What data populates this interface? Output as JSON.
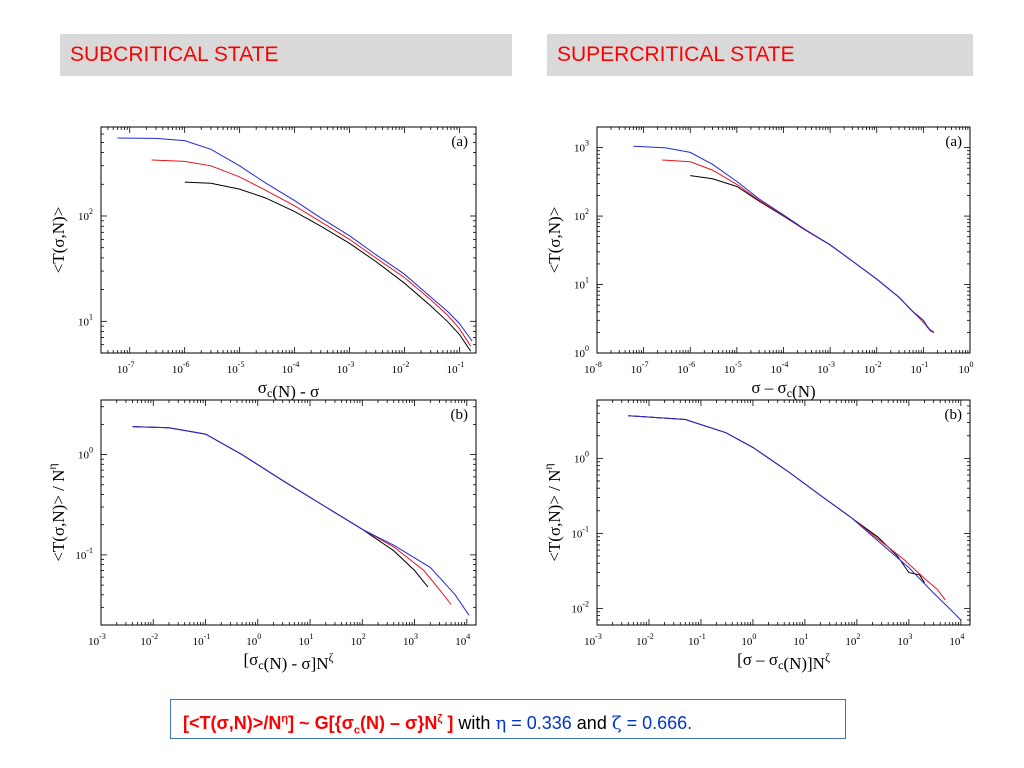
{
  "headers": {
    "left": "SUBCRITICAL  STATE",
    "right": "SUPERCRITICAL  STATE"
  },
  "formula": {
    "lhs": "[<T(σ,N)>/N",
    "lhs_sup": "η",
    "mid": "] ~ G[{σ",
    "mid_sub": "c",
    "rest": "(N) – σ}N",
    "rest_sup": "ζ",
    "close": " ]",
    "with": " with ",
    "eta_sym": "η",
    "eta_val": " = 0.336",
    "and": " and ",
    "zeta_sym": "ζ",
    "zeta_val": " = 0.666."
  },
  "colors": {
    "black": "#000000",
    "red": "#e8141c",
    "blue": "#1f2bd9",
    "header_bg": "#d9d9d9",
    "header_text": "#ff0000"
  },
  "chart_data": [
    {
      "id": "sub-a",
      "type": "line",
      "panel_label": "(a)",
      "xscale": "log",
      "yscale": "log",
      "xlim": [
        3e-08,
        0.2
      ],
      "ylim": [
        5,
        700
      ],
      "xticks": [
        "10^-7",
        "10^-6",
        "10^-5",
        "10^-4",
        "10^-3",
        "10^-2",
        "10^-1"
      ],
      "yticks": [
        "10^1",
        "10^2"
      ],
      "xlabel": "σc(N) - σ",
      "ylabel": "<T(σ,N)>",
      "series": [
        {
          "color": "black",
          "points": [
            [
              1e-06,
              210
            ],
            [
              3e-06,
              205
            ],
            [
              1e-05,
              180
            ],
            [
              3e-05,
              148
            ],
            [
              0.0001,
              110
            ],
            [
              0.0003,
              80
            ],
            [
              0.001,
              55
            ],
            [
              0.003,
              37
            ],
            [
              0.01,
              23
            ],
            [
              0.03,
              14
            ],
            [
              0.06,
              10
            ],
            [
              0.1,
              7.5
            ],
            [
              0.16,
              5.2
            ]
          ]
        },
        {
          "color": "red",
          "points": [
            [
              2.5e-07,
              340
            ],
            [
              1e-06,
              330
            ],
            [
              3e-06,
              300
            ],
            [
              1e-05,
              235
            ],
            [
              3e-05,
              175
            ],
            [
              0.0001,
              125
            ],
            [
              0.0003,
              88
            ],
            [
              0.001,
              60
            ],
            [
              0.003,
              40
            ],
            [
              0.01,
              26
            ],
            [
              0.03,
              16
            ],
            [
              0.06,
              11.5
            ],
            [
              0.1,
              8.5
            ],
            [
              0.16,
              5.8
            ]
          ]
        },
        {
          "color": "blue",
          "points": [
            [
              6e-08,
              550
            ],
            [
              3e-07,
              545
            ],
            [
              1e-06,
              520
            ],
            [
              3e-06,
              430
            ],
            [
              1e-05,
              300
            ],
            [
              3e-05,
              205
            ],
            [
              0.0001,
              140
            ],
            [
              0.0003,
              96
            ],
            [
              0.001,
              65
            ],
            [
              0.003,
              43
            ],
            [
              0.01,
              28
            ],
            [
              0.03,
              17
            ],
            [
              0.06,
              12.5
            ],
            [
              0.1,
              9.5
            ],
            [
              0.17,
              6.5
            ]
          ]
        }
      ]
    },
    {
      "id": "sup-a",
      "type": "line",
      "panel_label": "(a)",
      "xscale": "log",
      "yscale": "log",
      "xlim": [
        1e-08,
        1
      ],
      "ylim": [
        1,
        2000
      ],
      "xticks": [
        "10^-8",
        "10^-7",
        "10^-6",
        "10^-5",
        "10^-4",
        "10^-3",
        "10^-2",
        "10^-1",
        "10^0"
      ],
      "yticks": [
        "10^0",
        "10^1",
        "10^2",
        "10^3"
      ],
      "xlabel": "σ – σc(N)",
      "ylabel": "<T(σ,N)>",
      "series": [
        {
          "color": "black",
          "points": [
            [
              1e-06,
              390
            ],
            [
              3e-06,
              350
            ],
            [
              1e-05,
              270
            ],
            [
              3e-05,
              165
            ],
            [
              0.0001,
              100
            ],
            [
              0.0003,
              62
            ],
            [
              0.001,
              38
            ],
            [
              0.003,
              22
            ],
            [
              0.01,
              12
            ],
            [
              0.03,
              6.5
            ],
            [
              0.06,
              4
            ],
            [
              0.1,
              3
            ],
            [
              0.12,
              2.4
            ],
            [
              0.16,
              2
            ]
          ]
        },
        {
          "color": "red",
          "points": [
            [
              2.5e-07,
              660
            ],
            [
              1e-06,
              620
            ],
            [
              3e-06,
              470
            ],
            [
              1e-05,
              290
            ],
            [
              3e-05,
              170
            ],
            [
              0.0001,
              102
            ],
            [
              0.0003,
              62
            ],
            [
              0.001,
              38
            ],
            [
              0.003,
              22
            ],
            [
              0.01,
              12
            ],
            [
              0.03,
              6.5
            ],
            [
              0.06,
              4
            ],
            [
              0.1,
              2.8
            ],
            [
              0.14,
              2.2
            ],
            [
              0.17,
              2
            ]
          ]
        },
        {
          "color": "blue",
          "points": [
            [
              6e-08,
              1050
            ],
            [
              3e-07,
              990
            ],
            [
              1e-06,
              850
            ],
            [
              3e-06,
              570
            ],
            [
              1e-05,
              320
            ],
            [
              3e-05,
              178
            ],
            [
              0.0001,
              104
            ],
            [
              0.0003,
              63
            ],
            [
              0.001,
              38
            ],
            [
              0.003,
              22
            ],
            [
              0.01,
              12
            ],
            [
              0.03,
              6.5
            ],
            [
              0.06,
              4
            ],
            [
              0.1,
              3
            ],
            [
              0.14,
              2.1
            ],
            [
              0.17,
              2
            ]
          ]
        }
      ]
    },
    {
      "id": "sub-b",
      "type": "line",
      "panel_label": "(b)",
      "xscale": "log",
      "yscale": "log",
      "xlim": [
        0.001,
        15000
      ],
      "ylim": [
        0.02,
        3.5
      ],
      "xticks": [
        "10^-3",
        "10^-2",
        "10^-1",
        "10^0",
        "10^1",
        "10^2",
        "10^3",
        "10^4"
      ],
      "yticks": [
        "10^-1",
        "10^0"
      ],
      "xlabel": "[σc(N) - σ]Nζ",
      "ylabel": "<T(σ,N)> / Nη",
      "series": [
        {
          "color": "black",
          "points": [
            [
              0.004,
              1.9
            ],
            [
              0.02,
              1.85
            ],
            [
              0.1,
              1.6
            ],
            [
              0.5,
              1.0
            ],
            [
              3,
              0.55
            ],
            [
              20,
              0.3
            ],
            [
              100,
              0.18
            ],
            [
              400,
              0.11
            ],
            [
              1000,
              0.07
            ],
            [
              1800,
              0.048
            ]
          ]
        },
        {
          "color": "red",
          "points": [
            [
              0.004,
              1.9
            ],
            [
              0.02,
              1.85
            ],
            [
              0.1,
              1.6
            ],
            [
              0.5,
              1.0
            ],
            [
              3,
              0.55
            ],
            [
              20,
              0.3
            ],
            [
              100,
              0.18
            ],
            [
              400,
              0.12
            ],
            [
              1500,
              0.07
            ],
            [
              3000,
              0.045
            ],
            [
              5000,
              0.032
            ]
          ]
        },
        {
          "color": "blue",
          "points": [
            [
              0.004,
              1.9
            ],
            [
              0.02,
              1.85
            ],
            [
              0.1,
              1.6
            ],
            [
              0.5,
              1.0
            ],
            [
              3,
              0.55
            ],
            [
              20,
              0.3
            ],
            [
              100,
              0.18
            ],
            [
              400,
              0.125
            ],
            [
              2000,
              0.075
            ],
            [
              6000,
              0.04
            ],
            [
              11000,
              0.025
            ]
          ]
        }
      ]
    },
    {
      "id": "sup-b",
      "type": "line",
      "panel_label": "(b)",
      "xscale": "log",
      "yscale": "log",
      "xlim": [
        0.001,
        15000
      ],
      "ylim": [
        0.006,
        6
      ],
      "xticks": [
        "10^-3",
        "10^-2",
        "10^-1",
        "10^0",
        "10^1",
        "10^2",
        "10^3",
        "10^4"
      ],
      "yticks": [
        "10^-2",
        "10^-1",
        "10^0"
      ],
      "xlabel": "[σ – σc(N)]Nζ",
      "ylabel": "<T(σ,N)> / Nη",
      "series": [
        {
          "color": "black",
          "points": [
            [
              0.004,
              3.7
            ],
            [
              0.05,
              3.3
            ],
            [
              0.3,
              2.2
            ],
            [
              1,
              1.4
            ],
            [
              5,
              0.65
            ],
            [
              20,
              0.32
            ],
            [
              80,
              0.16
            ],
            [
              250,
              0.09
            ],
            [
              600,
              0.05
            ],
            [
              1000,
              0.03
            ],
            [
              1600,
              0.028
            ],
            [
              2000,
              0.022
            ]
          ]
        },
        {
          "color": "red",
          "points": [
            [
              0.004,
              3.7
            ],
            [
              0.05,
              3.3
            ],
            [
              0.3,
              2.2
            ],
            [
              1,
              1.4
            ],
            [
              5,
              0.65
            ],
            [
              20,
              0.32
            ],
            [
              80,
              0.16
            ],
            [
              250,
              0.085
            ],
            [
              800,
              0.045
            ],
            [
              2000,
              0.025
            ],
            [
              3500,
              0.018
            ],
            [
              5000,
              0.013
            ]
          ]
        },
        {
          "color": "blue",
          "points": [
            [
              0.004,
              3.7
            ],
            [
              0.05,
              3.3
            ],
            [
              0.3,
              2.2
            ],
            [
              1,
              1.4
            ],
            [
              5,
              0.65
            ],
            [
              20,
              0.32
            ],
            [
              80,
              0.16
            ],
            [
              250,
              0.08
            ],
            [
              1000,
              0.035
            ],
            [
              3000,
              0.016
            ],
            [
              6000,
              0.01
            ],
            [
              10000,
              0.007
            ]
          ]
        }
      ]
    }
  ]
}
